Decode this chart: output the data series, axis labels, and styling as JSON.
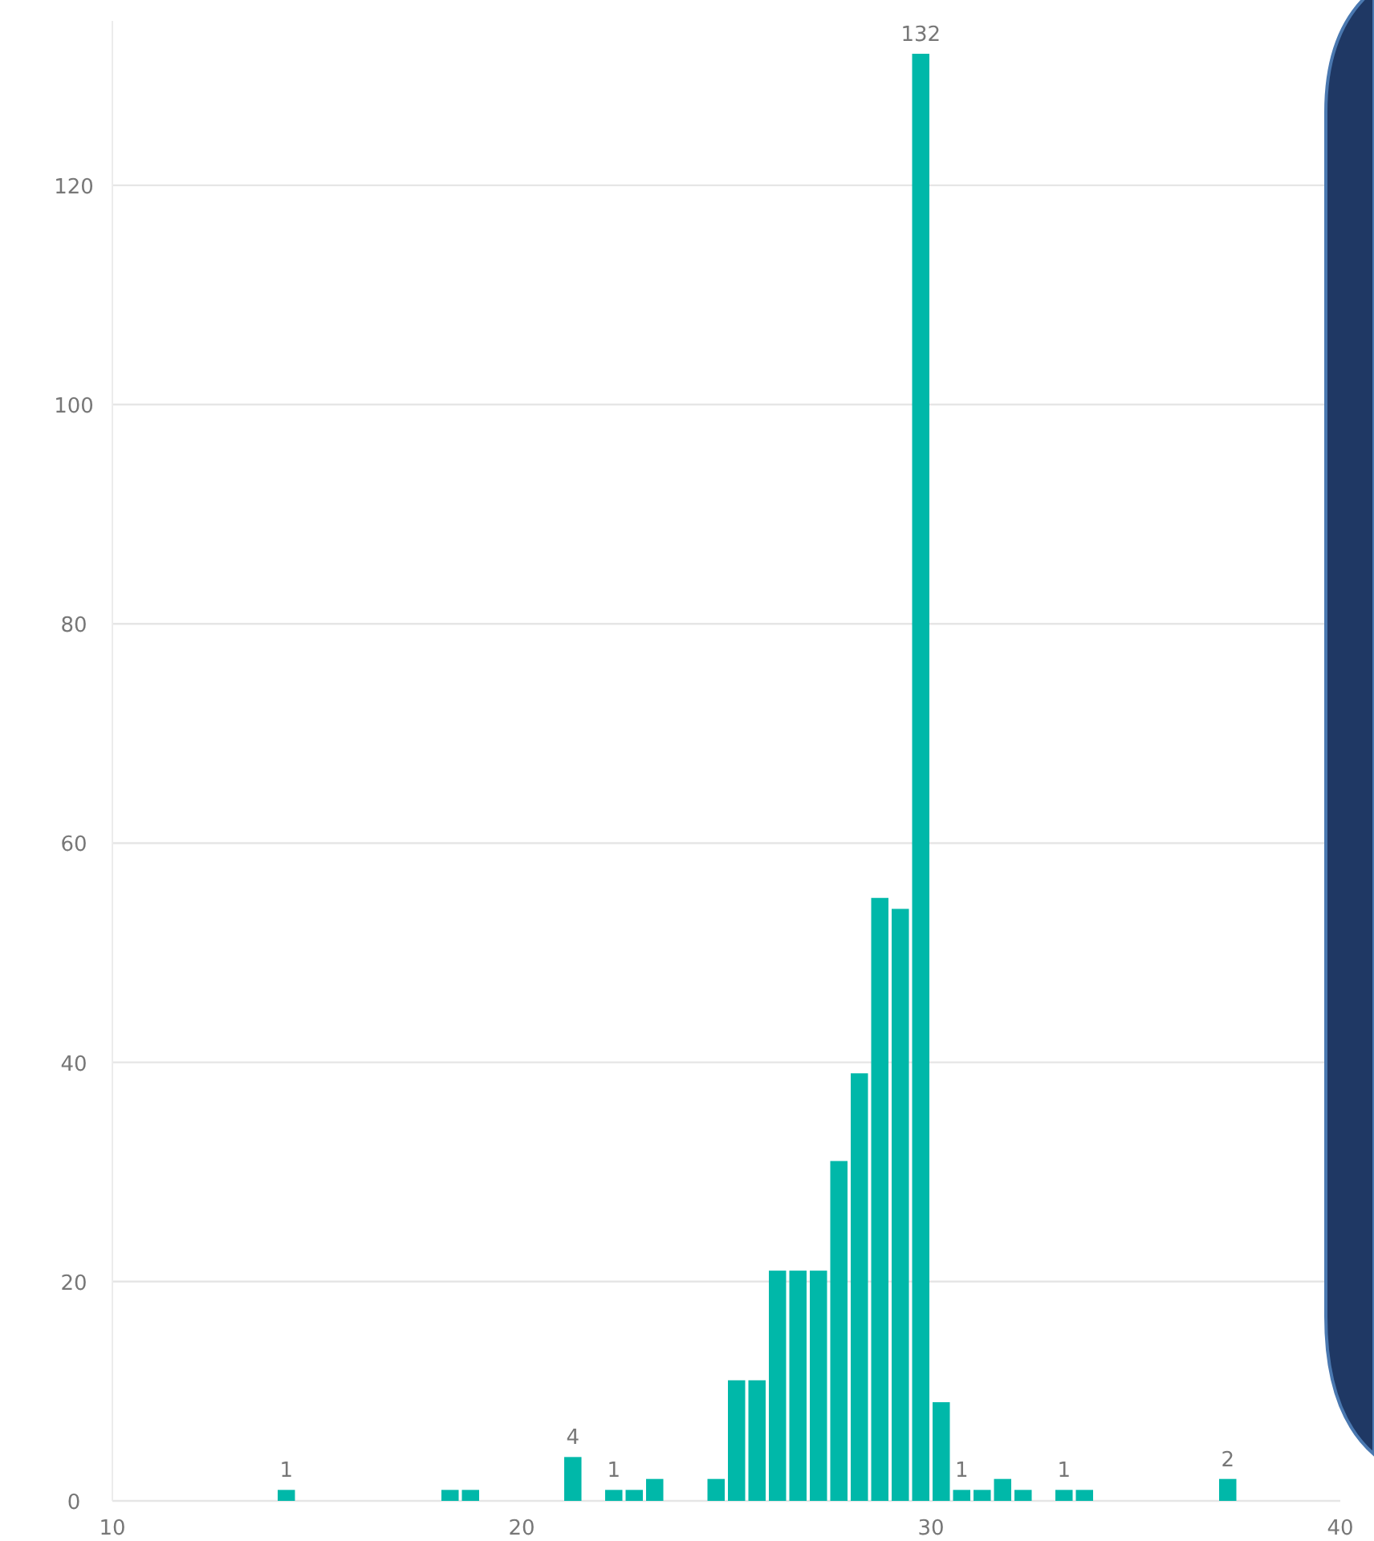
{
  "chart_data": {
    "type": "histogram",
    "bins": [
      14,
      14.5,
      15,
      15.5,
      16,
      16.5,
      17,
      17.5,
      18,
      18.5,
      19,
      19.5,
      20,
      20.5,
      21,
      21.5,
      22,
      22.5,
      23,
      23.5,
      24,
      24.5,
      25,
      25.5,
      26,
      26.5,
      27,
      27.5,
      28,
      28.5,
      29,
      29.5,
      30,
      30.5,
      31,
      31.5,
      32,
      32.5,
      33,
      33.5,
      34,
      34.5,
      35,
      35.5,
      36,
      36.5,
      37,
      37.5
    ],
    "values": [
      1,
      0,
      0,
      0,
      0,
      0,
      0,
      0,
      1,
      1,
      0,
      0,
      0,
      0,
      4,
      0,
      1,
      1,
      2,
      0,
      0,
      2,
      11,
      11,
      21,
      21,
      21,
      31,
      39,
      55,
      54,
      132,
      9,
      1,
      1,
      2,
      1,
      0,
      1,
      1,
      0,
      0,
      0,
      0,
      0,
      0,
      2
    ],
    "value_labels": [
      "1",
      null,
      null,
      null,
      null,
      null,
      null,
      null,
      null,
      null,
      null,
      null,
      null,
      null,
      "4",
      null,
      "1",
      null,
      null,
      null,
      null,
      null,
      null,
      null,
      null,
      null,
      null,
      null,
      null,
      null,
      null,
      "132",
      null,
      "1",
      null,
      null,
      null,
      null,
      "1",
      null,
      null,
      null,
      null,
      null,
      null,
      null,
      "2"
    ],
    "color": "#00b8a9",
    "xlim": [
      10,
      40
    ],
    "xticks": [
      10,
      20,
      30,
      40
    ],
    "ylim": [
      0,
      135
    ],
    "yticks": [
      0,
      20,
      40,
      60,
      80,
      100,
      120
    ],
    "grid": "y"
  }
}
